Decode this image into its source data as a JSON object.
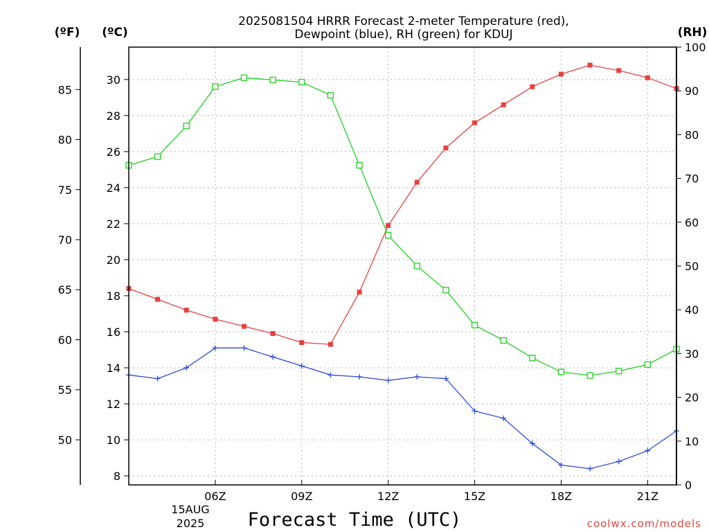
{
  "chart_data": {
    "type": "line",
    "title_line1": "2025081504 HRRR Forecast 2-meter Temperature (red),",
    "title_line2": "Dewpoint (blue), RH (green) for KDUJ",
    "xlabel": "Forecast Time (UTC)",
    "credit": "coolwx.com/models",
    "units": {
      "fahrenheit": "(ºF)",
      "celsius": "(ºC)",
      "rh": "(RH)"
    },
    "x_hours": [
      3,
      4,
      5,
      6,
      7,
      8,
      9,
      10,
      11,
      12,
      13,
      14,
      15,
      16,
      17,
      18,
      19,
      20,
      21,
      22
    ],
    "x_ticks": [
      {
        "hour": 6,
        "label": "06Z"
      },
      {
        "hour": 9,
        "label": "09Z"
      },
      {
        "hour": 12,
        "label": "12Z"
      },
      {
        "hour": 15,
        "label": "15Z"
      },
      {
        "hour": 18,
        "label": "18Z"
      },
      {
        "hour": 21,
        "label": "21Z"
      }
    ],
    "date_label": [
      "15AUG",
      "2025"
    ],
    "xlim": [
      3,
      22
    ],
    "celsius_axis": {
      "ylim": [
        7.5,
        31.8
      ],
      "ticks": [
        8,
        10,
        12,
        14,
        16,
        18,
        20,
        22,
        24,
        26,
        28,
        30
      ]
    },
    "fahrenheit_axis": {
      "ticks": [
        50,
        55,
        60,
        65,
        70,
        75,
        80,
        85
      ]
    },
    "rh_axis": {
      "ylim": [
        0,
        100
      ],
      "ticks": [
        0,
        10,
        20,
        30,
        40,
        50,
        60,
        70,
        80,
        90,
        100
      ]
    },
    "grid": true,
    "series": [
      {
        "name": "Temperature",
        "axis": "celsius",
        "color": "#e8403f",
        "marker": "filled-square",
        "values": [
          18.4,
          17.8,
          17.2,
          16.7,
          16.3,
          15.9,
          15.4,
          15.3,
          18.2,
          21.9,
          24.3,
          26.2,
          27.6,
          28.6,
          29.6,
          30.3,
          30.8,
          30.5,
          30.1,
          29.5
        ]
      },
      {
        "name": "Dewpoint",
        "axis": "celsius",
        "color": "#2b4ae0",
        "marker": "plus",
        "values": [
          13.6,
          13.4,
          14.0,
          15.1,
          15.1,
          14.6,
          14.1,
          13.6,
          13.5,
          13.3,
          13.5,
          13.4,
          11.6,
          11.2,
          9.8,
          8.6,
          8.4,
          8.8,
          9.4,
          10.5
        ]
      },
      {
        "name": "RH",
        "axis": "rh",
        "color": "#1fd11f",
        "marker": "open-square",
        "values": [
          73,
          75,
          82,
          91,
          93,
          92.5,
          92,
          89,
          73,
          57,
          50,
          44.5,
          36.5,
          33,
          29,
          25.8,
          25,
          26,
          27.5,
          31
        ]
      }
    ]
  }
}
